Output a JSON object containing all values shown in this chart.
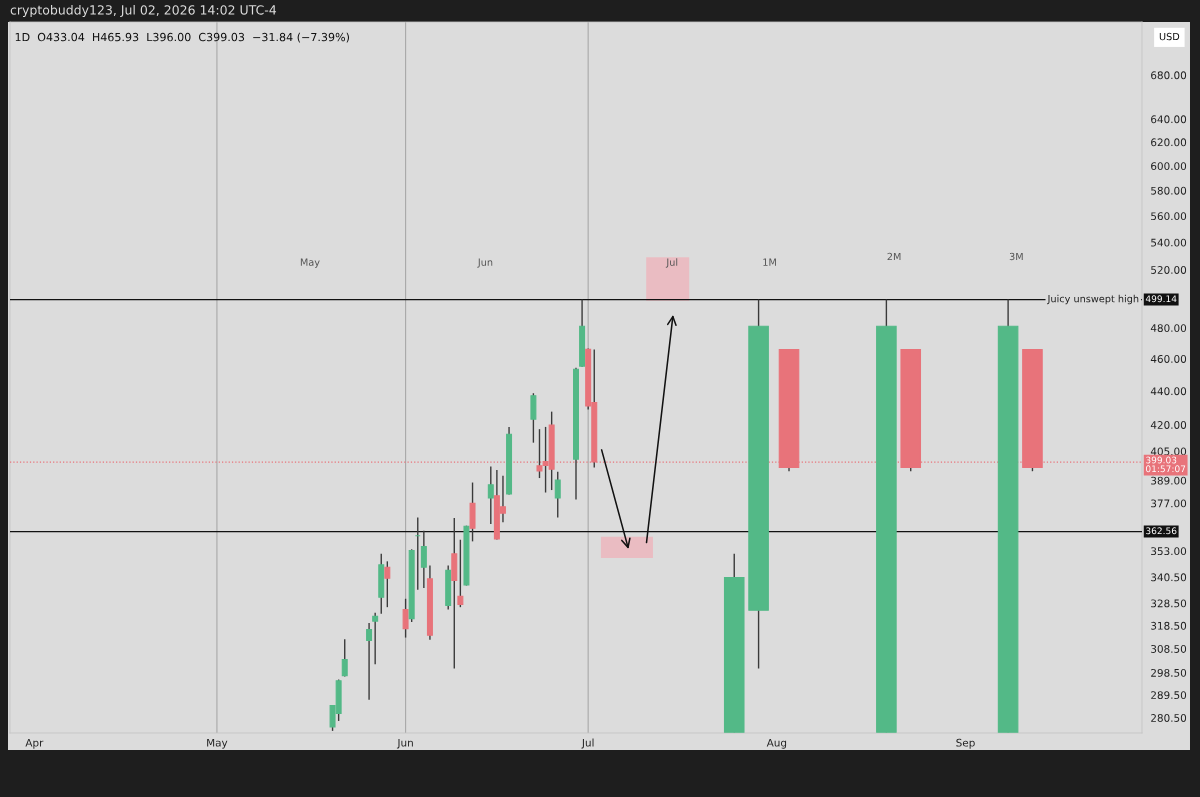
{
  "chart_data": {
    "type": "candlestick",
    "title": "cryptobuddy123, Jul 02, 2026 14:02 UTC-4",
    "subtitle": "1D  O433.04  H465.93  L396.00  C399.03  −31.84 (−7.39%)",
    "log": true,
    "series": [
      {
        "type": "candlestick",
        "x": [
          "2026-05-20",
          "2026-05-21",
          "2026-05-22",
          "2026-05-26",
          "2026-05-27",
          "2026-05-28",
          "2026-05-29",
          "2026-06-01",
          "2026-06-02",
          "2026-06-03",
          "2026-06-04",
          "2026-06-05",
          "2026-06-08",
          "2026-06-09",
          "2026-06-10",
          "2026-06-11",
          "2026-06-12",
          "2026-06-15",
          "2026-06-16",
          "2026-06-17",
          "2026-06-18",
          "2026-06-22",
          "2026-06-23",
          "2026-06-24",
          "2026-06-25",
          "2026-06-26",
          "2026-06-29",
          "2026-06-30",
          "2026-07-01",
          "2026-07-02"
        ],
        "ohlc": [
          [
            277,
            285.5,
            275.5,
            285.3
          ],
          [
            282.2,
            295.7,
            279.3,
            295.2
          ],
          [
            297.3,
            312.6,
            296.9,
            304.0
          ],
          [
            312.1,
            319.6,
            287.6,
            316.8
          ],
          [
            320.5,
            324.2,
            302.0,
            322.6
          ],
          [
            331.2,
            351.6,
            323.8,
            346.3
          ],
          [
            345.2,
            348.0,
            326.7,
            340.0
          ],
          [
            325.6,
            330.5,
            313.3,
            317.2
          ],
          [
            321.6,
            353.8,
            320.1,
            353.2
          ],
          [
            360.5,
            369.7,
            334.6,
            360.5
          ],
          [
            345.2,
            363.0,
            335.4,
            355.1
          ],
          [
            339.7,
            346.0,
            312.4,
            314.3
          ],
          [
            327.5,
            346.0,
            325.6,
            343.7
          ],
          [
            351.6,
            369.4,
            300.2,
            339.0
          ],
          [
            331.6,
            358.5,
            326.7,
            327.9
          ],
          [
            336.9,
            365.5,
            336.6,
            365.2
          ],
          [
            376.9,
            387.9,
            357.7,
            364.2
          ],
          [
            379.7,
            396.6,
            366.4,
            386.7
          ],
          [
            380.9,
            394.7,
            358.6,
            358.9
          ],
          [
            375.2,
            391.5,
            367.2,
            371.9
          ],
          [
            381.8,
            418.8,
            381.5,
            414.6
          ],
          [
            423.3,
            438.7,
            409.8,
            437.2
          ],
          [
            396.9,
            417.5,
            390.3,
            394.2
          ],
          [
            399.3,
            418.8,
            382.6,
            397.1
          ],
          [
            419.8,
            427.7,
            383.9,
            395.1
          ],
          [
            379.7,
            393.7,
            369.7,
            389.2
          ],
          [
            400.6,
            454.4,
            379.0,
            453.4
          ],
          [
            455.4,
            499.14,
            455.0,
            481.1
          ],
          [
            466.0,
            466.5,
            429.0,
            431.0
          ],
          [
            433.04,
            465.93,
            396.0,
            399.03
          ]
        ],
        "colors": [
          "#53b987",
          "#53b987",
          "#53b987",
          "#53b987",
          "#53b987",
          "#53b987",
          "#e8737a",
          "#e8737a",
          "#53b987",
          "#53b987",
          "#53b987",
          "#e8737a",
          "#53b987",
          "#e8737a",
          "#e8737a",
          "#53b987",
          "#e8737a",
          "#53b987",
          "#e8737a",
          "#e8737a",
          "#53b987",
          "#53b987",
          "#e8737a",
          "#e8737a",
          "#e8737a",
          "#53b987",
          "#53b987",
          "#53b987",
          "#e8737a",
          "#e8737a"
        ]
      },
      {
        "type": "candlestick",
        "x": [
          "2026-07-25",
          "2026-07-29",
          "2026-08-03",
          "2026-08-19",
          "2026-08-23",
          "2026-09-08",
          "2026-09-12"
        ],
        "ohlc": [
          [
            275,
            351.6,
            275,
            340.3
          ],
          [
            325.3,
            499.14,
            300.2,
            481.1
          ],
          [
            465.9,
            465.9,
            394.0,
            396.0
          ],
          [
            275,
            499.14,
            275,
            481.1
          ],
          [
            465.9,
            465.9,
            394.0,
            396.0
          ],
          [
            275,
            499.14,
            275,
            481.1
          ],
          [
            465.9,
            465.9,
            394.0,
            396.0
          ]
        ],
        "colors": [
          "#53b987",
          "#53b987",
          "#e8737a",
          "#53b987",
          "#e8737a",
          "#53b987",
          "#e8737a"
        ]
      }
    ],
    "xlim": [
      "2026-03-28",
      "2026-09-30"
    ],
    "xticks": [
      {
        "value": "2026-04-01",
        "label": "Apr"
      },
      {
        "value": "2026-05-01",
        "label": "May"
      },
      {
        "value": "2026-06-01",
        "label": "Jun"
      },
      {
        "value": "2026-07-01",
        "label": "Jul"
      },
      {
        "value": "2026-08-01",
        "label": "Aug"
      },
      {
        "value": "2026-09-01",
        "label": "Sep"
      }
    ],
    "ylim": [
      274.7,
      731.6
    ],
    "yticks": [
      {
        "value": 280.5,
        "label": "280.50"
      },
      {
        "value": 289.5,
        "label": "289.50"
      },
      {
        "value": 298.5,
        "label": "298.50"
      },
      {
        "value": 308.5,
        "label": "308.50"
      },
      {
        "value": 318.5,
        "label": "318.50"
      },
      {
        "value": 328.5,
        "label": "328.50"
      },
      {
        "value": 340.5,
        "label": "340.50"
      },
      {
        "value": 353,
        "label": "353.00"
      },
      {
        "value": 377,
        "label": "377.00"
      },
      {
        "value": 389,
        "label": "389.00"
      },
      {
        "value": 405,
        "label": "405.00"
      },
      {
        "value": 420,
        "label": "420.00"
      },
      {
        "value": 440,
        "label": "440.00"
      },
      {
        "value": 460,
        "label": "460.00"
      },
      {
        "value": 480,
        "label": "480.00"
      },
      {
        "value": 520,
        "label": "520.00"
      },
      {
        "value": 540,
        "label": "540.00"
      },
      {
        "value": 560,
        "label": "560.00"
      },
      {
        "value": 580,
        "label": "580.00"
      },
      {
        "value": 600,
        "label": "600.00"
      },
      {
        "value": 620,
        "label": "620.00"
      },
      {
        "value": 640,
        "label": "640.00"
      },
      {
        "value": 680,
        "label": "680.00"
      }
    ],
    "ref_lines": [
      {
        "axis": "x",
        "value": "2026-05-01",
        "color": "#a8a8a8"
      },
      {
        "axis": "x",
        "value": "2026-06-01",
        "color": "#a8a8a8"
      },
      {
        "axis": "x",
        "value": "2026-07-01",
        "color": "#a8a8a8"
      },
      {
        "axis": "y",
        "value": 499.14,
        "label": "499.14",
        "color": "#111111",
        "line_style": "solid"
      },
      {
        "axis": "y",
        "value": 362.56,
        "label": "362.56",
        "color": "#111111",
        "line_style": "solid"
      },
      {
        "axis": "y",
        "value": 399.03,
        "label": "399.03\n01:57:07",
        "color": "#e8737a",
        "line_style": "dotted"
      }
    ],
    "annotations": [
      "USD",
      "May",
      "Jun",
      "Jul",
      "1M",
      "2M",
      "3M",
      {
        "text": "Juicy unswept high",
        "x": "2026-09-22",
        "y": 499.14
      }
    ]
  }
}
